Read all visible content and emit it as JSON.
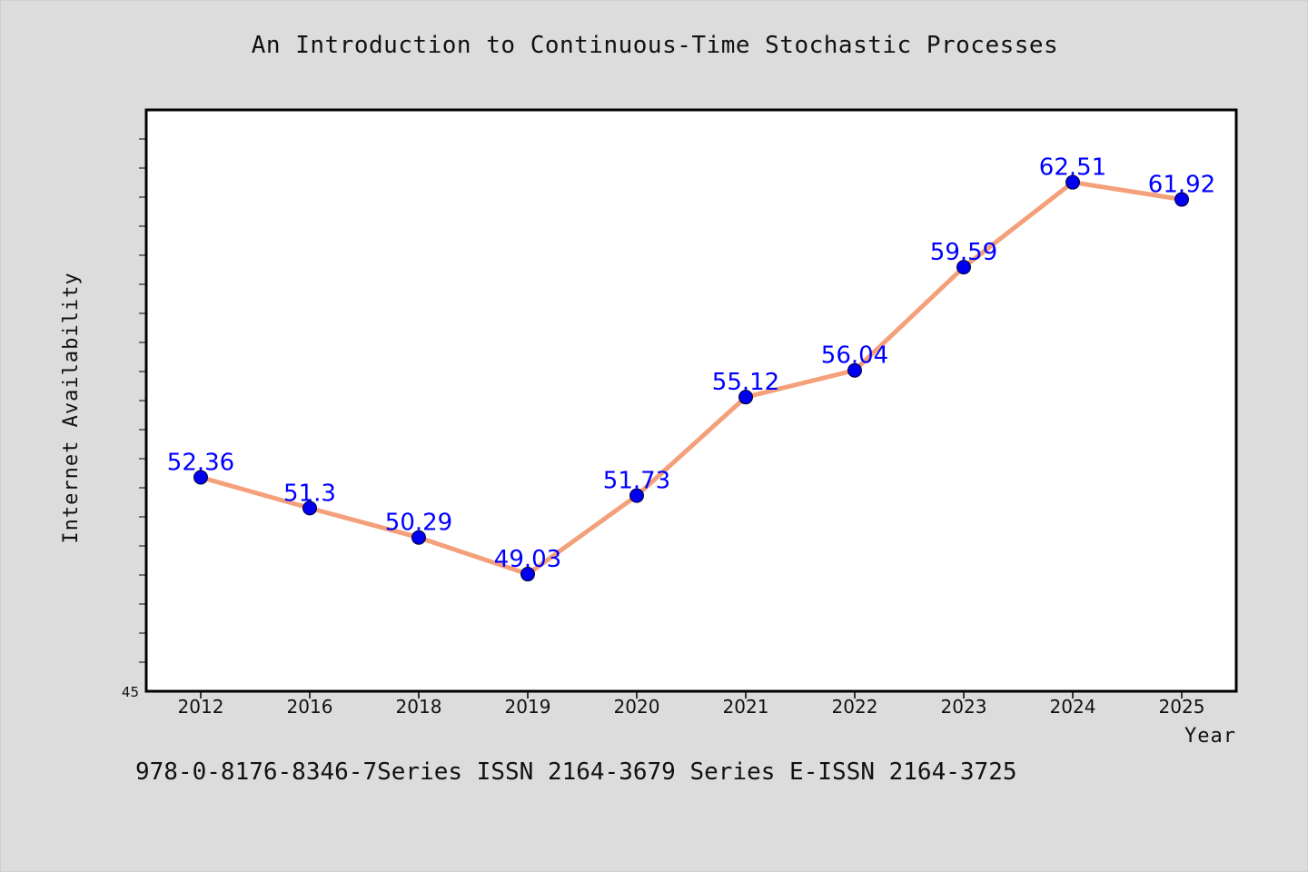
{
  "chart_data": {
    "type": "line",
    "title": "An Introduction to Continuous-Time Stochastic Processes",
    "xlabel": "Year",
    "ylabel": "Internet Availability",
    "categories": [
      "2012",
      "2016",
      "2018",
      "2019",
      "2020",
      "2021",
      "2022",
      "2023",
      "2024",
      "2025"
    ],
    "series": [
      {
        "values": [
          52.36,
          51.3,
          50.29,
          49.03,
          51.73,
          55.12,
          56.04,
          59.59,
          62.51,
          61.92
        ]
      }
    ],
    "data_labels": [
      "52.36",
      "51.3",
      "50.29",
      "49.03",
      "51.73",
      "55.12",
      "56.04",
      "59.59",
      "62.51",
      "61.92"
    ],
    "ylim": [
      45,
      65
    ],
    "y_tick_labels": [
      "45"
    ],
    "grid": false,
    "legend": "none",
    "colors": {
      "line": "#f4a07a",
      "marker": "#0000ee",
      "label": "#0000ff",
      "plot_background": "#ffffff",
      "page_background": "#dcdcdc"
    }
  },
  "footer": {
    "text": "978-0-8176-8346-7Series ISSN 2164-3679 Series E-ISSN 2164-3725"
  }
}
